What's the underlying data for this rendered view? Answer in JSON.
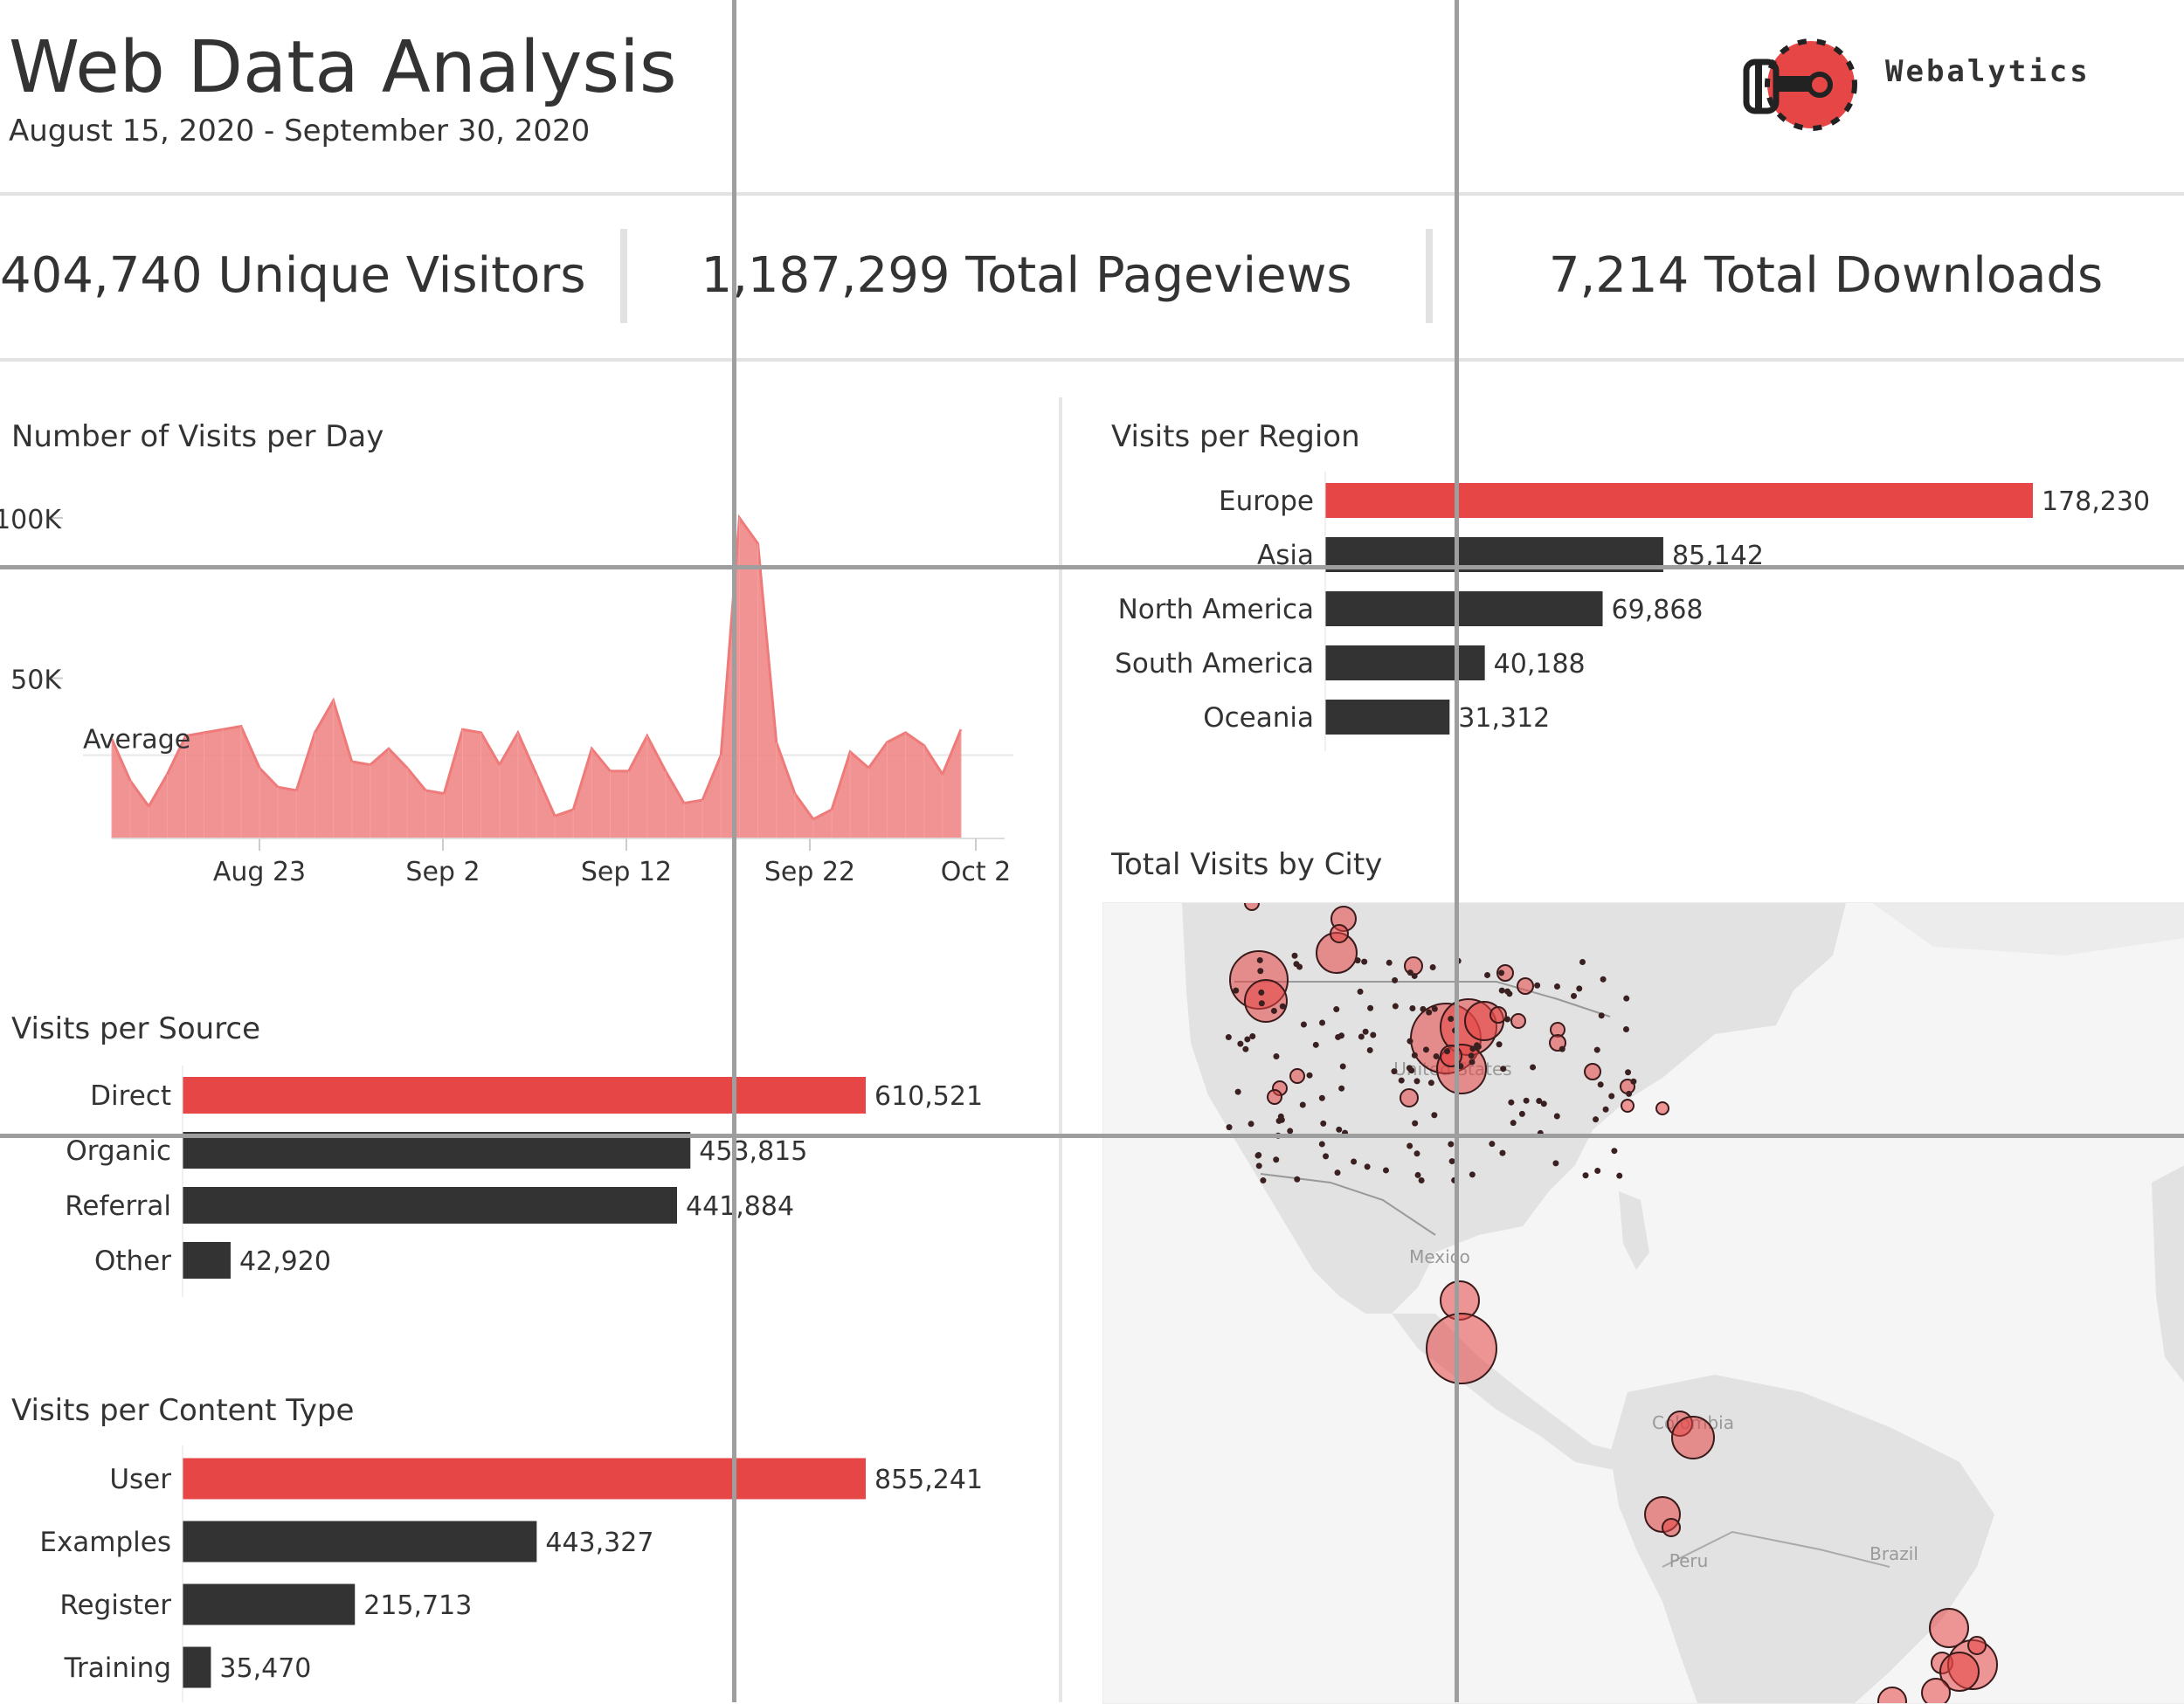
{
  "header": {
    "title": "Web Data Analysis",
    "date_range": "August 15, 2020 - September 30, 2020",
    "logo_text": "Webalytics"
  },
  "kpis": {
    "visitors": "404,740 Unique Visitors",
    "pageviews": "1,187,299 Total Pageviews",
    "downloads": "7,214 Total Downloads"
  },
  "colors": {
    "accent": "#e64646",
    "dark": "#333333",
    "area_fill": "#f08080",
    "map_land": "#e2e2e2"
  },
  "visits_title": "Number of Visits per Day",
  "average_label": "Average",
  "region_title": "Visits per Region",
  "source_title": "Visits per Source",
  "content_title": "Visits per Content Type",
  "map": {
    "title": "Total Visits by City",
    "labels": {
      "us": "United States",
      "mexico": "Mexico",
      "colombia": "Colombia",
      "peru": "Peru",
      "brazil": "Brazil"
    }
  },
  "chart_data": [
    {
      "type": "area",
      "title": "Number of Visits per Day",
      "x_ticks": [
        "Aug 23",
        "Sep 2",
        "Sep 12",
        "Sep 22",
        "Oct 2"
      ],
      "y_ticks": [
        "100K",
        "50K"
      ],
      "ylim": [
        0,
        100000
      ],
      "average": 26000,
      "values": [
        31000,
        18000,
        10000,
        20000,
        32000,
        33000,
        34000,
        35000,
        22000,
        16000,
        15000,
        33000,
        43000,
        24000,
        23000,
        28000,
        22000,
        15000,
        14000,
        34000,
        33000,
        23000,
        33000,
        20000,
        7000,
        9000,
        28000,
        21000,
        21000,
        32000,
        21000,
        11000,
        12000,
        26000,
        100000,
        92000,
        30000,
        14000,
        6000,
        9000,
        27000,
        22000,
        30000,
        33000,
        29000,
        20000,
        34000
      ]
    },
    {
      "type": "bar",
      "title": "Visits per Region",
      "categories": [
        "Europe",
        "Asia",
        "North America",
        "South America",
        "Oceania"
      ],
      "values": [
        178230,
        85142,
        69868,
        40188,
        31312
      ],
      "value_labels": [
        "178,230",
        "85,142",
        "69,868",
        "40,188",
        "31,312"
      ],
      "max": 178230
    },
    {
      "type": "bar",
      "title": "Visits per Source",
      "categories": [
        "Direct",
        "Organic",
        "Referral",
        "Other"
      ],
      "values": [
        610521,
        453815,
        441884,
        42920
      ],
      "value_labels": [
        "610,521",
        "453,815",
        "441,884",
        "42,920"
      ],
      "max": 610521
    },
    {
      "type": "bar",
      "title": "Visits per Content Type",
      "categories": [
        "User",
        "Examples",
        "Register",
        "Training"
      ],
      "values": [
        855241,
        443327,
        215713,
        35470
      ],
      "value_labels": [
        "855,241",
        "443,327",
        "215,713",
        "35,470"
      ],
      "max": 855241
    }
  ]
}
